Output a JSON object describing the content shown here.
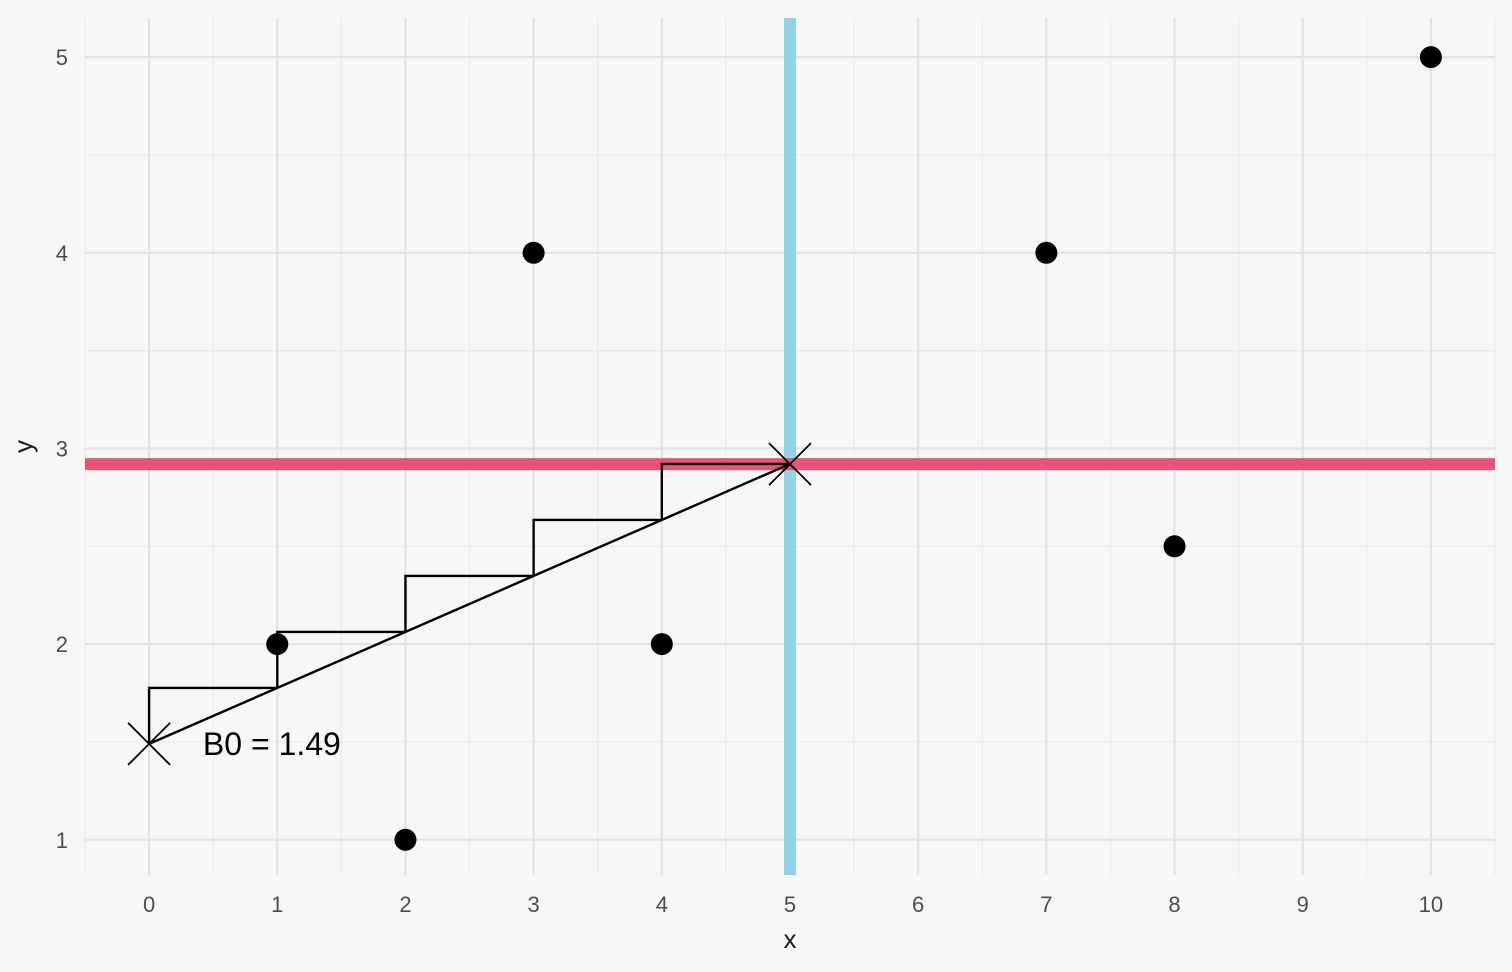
{
  "chart_data": {
    "type": "scatter",
    "xlabel": "x",
    "ylabel": "y",
    "xlim": [
      -0.5,
      10.5
    ],
    "ylim": [
      0.82,
      5.2
    ],
    "x_ticks": [
      0,
      1,
      2,
      3,
      4,
      5,
      6,
      7,
      8,
      9,
      10
    ],
    "y_ticks": [
      1,
      2,
      3,
      4,
      5
    ],
    "grid": true,
    "points": [
      {
        "x": 1,
        "y": 2
      },
      {
        "x": 2,
        "y": 1
      },
      {
        "x": 3,
        "y": 4
      },
      {
        "x": 4,
        "y": 2
      },
      {
        "x": 7,
        "y": 4
      },
      {
        "x": 8,
        "y": 2.5
      },
      {
        "x": 10,
        "y": 5
      }
    ],
    "mean_x": 5,
    "mean_y": 2.92,
    "intercept": 1.49,
    "slope": 0.2862,
    "mean_x_color": "#91d4e3",
    "mean_y_color": "#e8537a",
    "annotation": {
      "text": "B0 = 1.49",
      "x": 0.42,
      "y": 1.49
    }
  }
}
